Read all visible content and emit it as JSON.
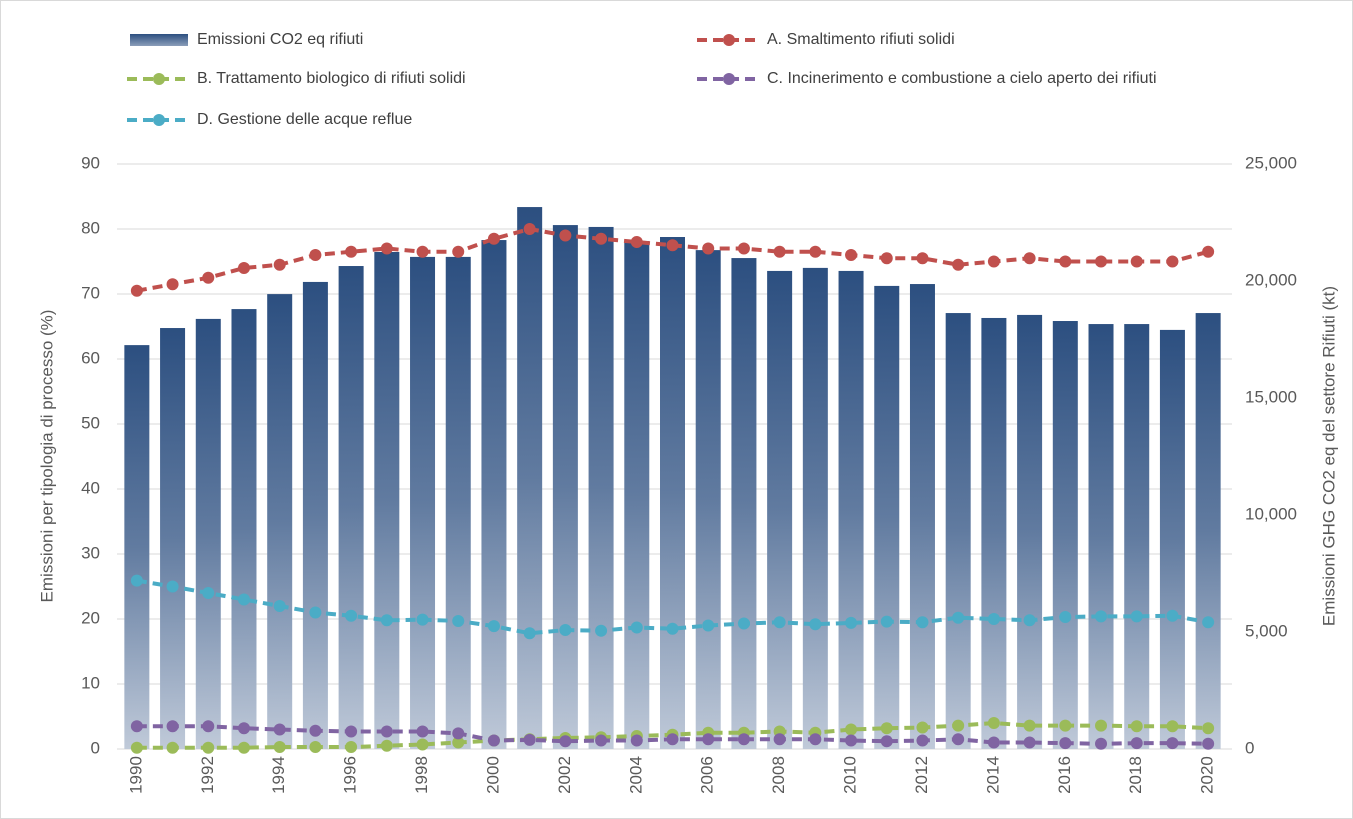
{
  "chart_data": {
    "type": "bar-line",
    "categories": [
      "1990",
      null,
      "1992",
      null,
      "1994",
      null,
      "1996",
      null,
      "1998",
      null,
      "2000",
      null,
      "2002",
      null,
      "2004",
      null,
      "2006",
      null,
      "2008",
      null,
      "2010",
      null,
      "2012",
      null,
      "2014",
      null,
      "2016",
      null,
      "2018",
      null,
      "2020"
    ],
    "y_label": "Emissioni per tipologia di processo (%)",
    "y2_label": "Emissioni GHG CO2 eq del settore Rifiuti  (kt)",
    "ylim": [
      0,
      90
    ],
    "yticks": [
      0,
      10,
      20,
      30,
      40,
      50,
      60,
      70,
      80,
      90
    ],
    "y2lim": [
      0,
      25000
    ],
    "y2ticks": [
      0,
      {
        "value": 5000,
        "label": "5,000"
      },
      {
        "value": 10000,
        "label": "10,000"
      },
      {
        "value": 15000,
        "label": "15,000"
      },
      {
        "value": 20000,
        "label": "20,000"
      },
      {
        "value": 25000,
        "label": "25,000"
      }
    ],
    "grid": true,
    "series": [
      {
        "name": "Emissioni CO2 eq rifiuti",
        "type": "bar",
        "axis": "y2",
        "color": "#2c4f80",
        "values": [
          17260,
          17990,
          18380,
          18800,
          19440,
          19960,
          20640,
          21240,
          21030,
          21030,
          21750,
          23160,
          22390,
          22310,
          21710,
          21880,
          21320,
          20980,
          20430,
          20560,
          20430,
          19790,
          19870,
          18630,
          18420,
          18550,
          18290,
          18160,
          18160,
          17910,
          18630
        ]
      },
      {
        "name": "A.  Smaltimento rifiuti solidi",
        "type": "line",
        "color": "#c0504d",
        "values": [
          70.5,
          71.5,
          72.5,
          74,
          74.5,
          76,
          76.5,
          77,
          76.5,
          76.5,
          78.5,
          80,
          79,
          78.5,
          78,
          77.5,
          77,
          77,
          76.5,
          76.5,
          76,
          75.5,
          75.5,
          74.5,
          75,
          75.5,
          75,
          75,
          75,
          75,
          76.5
        ]
      },
      {
        "name": "B.  Trattamento biologico di rifiuti solidi",
        "type": "line",
        "color": "#9bbb59",
        "values": [
          0.2,
          0.2,
          0.2,
          0.2,
          0.3,
          0.3,
          0.3,
          0.5,
          0.7,
          1,
          1.3,
          1.5,
          1.7,
          1.8,
          2,
          2.2,
          2.5,
          2.5,
          2.7,
          2.5,
          3,
          3.2,
          3.3,
          3.6,
          4,
          3.6,
          3.6,
          3.6,
          3.5,
          3.5,
          3.2
        ]
      },
      {
        "name": "C.  Incinerimento e combustione a cielo aperto dei rifiuti",
        "type": "line",
        "color": "#8064a2",
        "values": [
          3.5,
          3.5,
          3.5,
          3.2,
          3,
          2.8,
          2.7,
          2.7,
          2.7,
          2.4,
          1.3,
          1.4,
          1.2,
          1.3,
          1.3,
          1.5,
          1.5,
          1.5,
          1.5,
          1.5,
          1.3,
          1.2,
          1.3,
          1.5,
          1,
          1,
          0.9,
          0.8,
          0.9,
          0.9,
          0.8
        ]
      },
      {
        "name": "D.  Gestione delle acque reflue",
        "type": "line",
        "color": "#4bacc6",
        "values": [
          25.9,
          25,
          24,
          23,
          22,
          21,
          20.5,
          19.8,
          19.9,
          19.7,
          18.9,
          17.8,
          18.3,
          18.2,
          18.7,
          18.5,
          19,
          19.3,
          19.5,
          19.2,
          19.4,
          19.6,
          19.5,
          20.2,
          20,
          19.8,
          20.3,
          20.4,
          20.4,
          20.5,
          19.5
        ]
      }
    ]
  }
}
